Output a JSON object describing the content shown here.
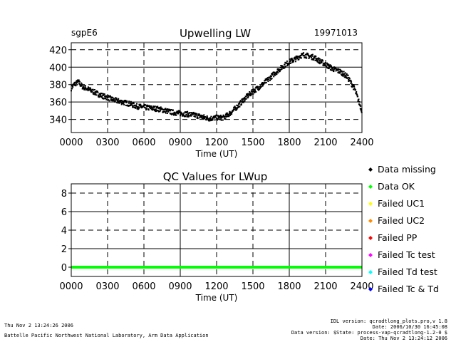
{
  "chart_data": [
    {
      "type": "scatter",
      "title": "Upwelling LW",
      "station": "sgpE6",
      "date": "19971013",
      "xlabel": "Time (UT)",
      "ylabel": "",
      "xlim": [
        0,
        2400
      ],
      "ylim": [
        325,
        428
      ],
      "x_ticks": [
        "0000",
        "0300",
        "0600",
        "0900",
        "1200",
        "1500",
        "1800",
        "2100",
        "2400"
      ],
      "y_ticks": [
        "340",
        "360",
        "380",
        "400",
        "420"
      ],
      "y_tick_values": [
        340,
        360,
        380,
        400,
        420
      ],
      "grid": true,
      "series": [
        {
          "name": "LWup",
          "color": "#000000",
          "x": [
            0,
            30,
            60,
            90,
            120,
            180,
            240,
            300,
            360,
            420,
            480,
            540,
            600,
            660,
            720,
            780,
            840,
            900,
            960,
            1020,
            1080,
            1140,
            1200,
            1260,
            1320,
            1380,
            1440,
            1500,
            1560,
            1620,
            1680,
            1740,
            1800,
            1860,
            1890,
            1920,
            1950,
            1980,
            2010,
            2040,
            2100,
            2160,
            2220,
            2280,
            2340,
            2370,
            2400
          ],
          "y": [
            376,
            381,
            383,
            378,
            376,
            372,
            368,
            365,
            362,
            360,
            358,
            355,
            354,
            353,
            352,
            350,
            348,
            347,
            346,
            345,
            343,
            341,
            342,
            342,
            348,
            356,
            365,
            372,
            378,
            385,
            393,
            400,
            406,
            410,
            413,
            414,
            413,
            412,
            411,
            408,
            403,
            398,
            395,
            389,
            375,
            362,
            350
          ]
        }
      ]
    },
    {
      "type": "line",
      "title": "QC Values for LWup",
      "xlabel": "Time (UT)",
      "xlim": [
        0,
        2400
      ],
      "ylim": [
        -1,
        9
      ],
      "x_ticks": [
        "0000",
        "0300",
        "0600",
        "0900",
        "1200",
        "1500",
        "1800",
        "2100",
        "2400"
      ],
      "y_ticks": [
        "0",
        "2",
        "4",
        "6",
        "8"
      ],
      "y_tick_values": [
        0,
        2,
        4,
        6,
        8
      ],
      "grid": true,
      "series": [
        {
          "name": "QC",
          "color": "#00ff00",
          "x": [
            0,
            2400
          ],
          "y": [
            0,
            0
          ]
        }
      ],
      "legend": [
        {
          "label": "Data missing",
          "color": "#000000"
        },
        {
          "label": "Data OK",
          "color": "#00ff00"
        },
        {
          "label": "Failed UC1",
          "color": "#ffff00"
        },
        {
          "label": "Failed UC2",
          "color": "#ff8c00"
        },
        {
          "label": "Failed PP",
          "color": "#ff0000"
        },
        {
          "label": "Failed Tc test",
          "color": "#ff00ff"
        },
        {
          "label": "Failed Td test",
          "color": "#00ffff"
        },
        {
          "label": "Failed Tc & Td",
          "color": "#0000ff"
        }
      ],
      "legend_position": "right"
    }
  ],
  "footer": {
    "timestamp": "Thu Nov  2 13:24:26 2006",
    "lab": "Battelle Pacific Northwest National Laboratory, Arm Data Application",
    "idl_version": "IDL version: qcradtlong_plots.pro,v 1.8",
    "date_line": "Date: 2006/10/30 16:45:08",
    "data_version": "Data version: $State: process-vap-qcradtlong-1.2-0 $",
    "date_line2": "Date: Thu Nov  2 13:24:12 2006"
  }
}
